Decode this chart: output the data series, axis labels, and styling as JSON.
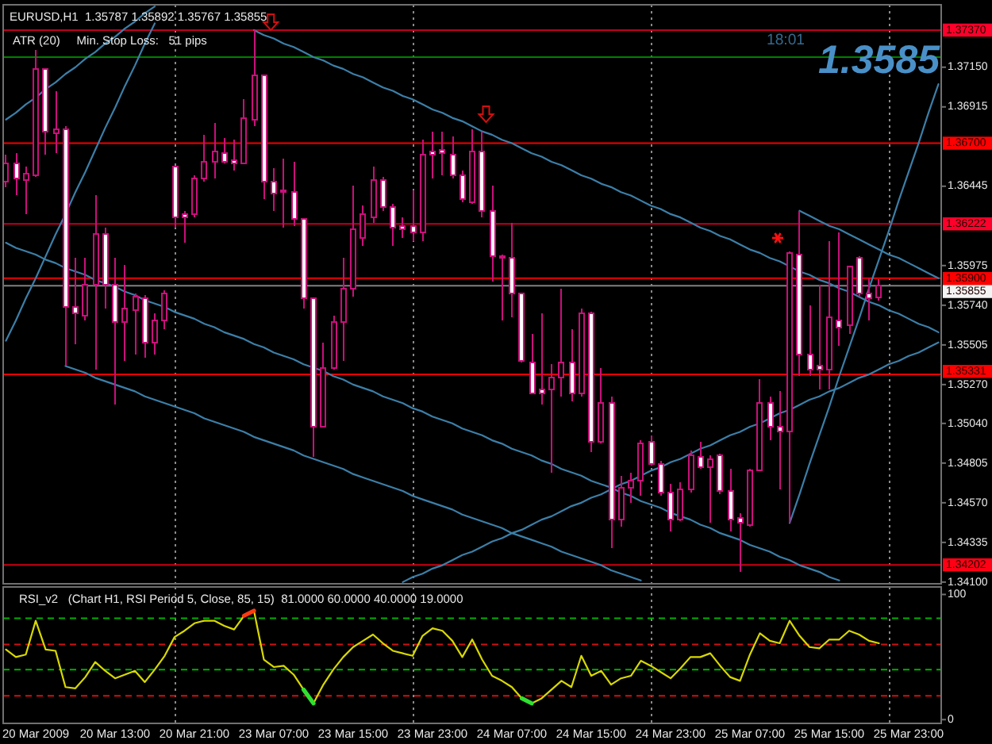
{
  "chart_data": [
    {
      "type": "candlestick",
      "title": "EURUSD,H1  1.35787 1.35892 1.35767 1.35855",
      "subtitle": "ATR (20)     Min. Stop Loss:   51 pips",
      "annotations": [
        "18:01",
        "1.3585"
      ],
      "categories": [
        null,
        null,
        null,
        null,
        null,
        null,
        null,
        null,
        null,
        null,
        null,
        null,
        null,
        null,
        null,
        null,
        null,
        null,
        null,
        null,
        null,
        null,
        null,
        null,
        null,
        null,
        null,
        null,
        null,
        null,
        null,
        null,
        null,
        null,
        null,
        null,
        null,
        null,
        null,
        null,
        null,
        null,
        null,
        null,
        null,
        null,
        null,
        null,
        null,
        null,
        null,
        null,
        null,
        null,
        null,
        null,
        null,
        null,
        null,
        null,
        null,
        null,
        null,
        null,
        null,
        null,
        null,
        null,
        null,
        null,
        null,
        null,
        null,
        null,
        null,
        null,
        null,
        null,
        null,
        null,
        null,
        null,
        null,
        null,
        null,
        null,
        null,
        null,
        null,
        null,
        null,
        null,
        null,
        null,
        null
      ],
      "ohlc": [
        [
          1.3647,
          1.3663,
          1.3644,
          1.3658
        ],
        [
          1.3658,
          1.3664,
          1.3639,
          1.3649
        ],
        [
          1.3648,
          1.3656,
          1.3628,
          1.3652
        ],
        [
          1.3651,
          1.3725,
          1.365,
          1.3714
        ],
        [
          1.3714,
          1.3714,
          1.3663,
          1.3677
        ],
        [
          1.3676,
          1.3701,
          1.3664,
          1.3678
        ],
        [
          1.3678,
          1.368,
          1.3538,
          1.3573
        ],
        [
          1.3573,
          1.3602,
          1.3551,
          1.3569
        ],
        [
          1.3568,
          1.3602,
          1.3565,
          1.3586
        ],
        [
          1.3586,
          1.3639,
          1.3536,
          1.3616
        ],
        [
          1.3616,
          1.362,
          1.3572,
          1.3586
        ],
        [
          1.3586,
          1.3602,
          1.3515,
          1.3564
        ],
        [
          1.3564,
          1.3598,
          1.3541,
          1.3572
        ],
        [
          1.3571,
          1.3581,
          1.3545,
          1.3579
        ],
        [
          1.3578,
          1.358,
          1.3543,
          1.3552
        ],
        [
          1.3552,
          1.3569,
          1.3545,
          1.3565
        ],
        [
          1.3565,
          1.3583,
          1.356,
          1.3581
        ],
        [
          1.3656,
          1.3656,
          1.362,
          1.3626
        ],
        [
          1.3628,
          1.363,
          1.3611,
          1.3626
        ],
        [
          1.3628,
          1.3651,
          1.3626,
          1.3649
        ],
        [
          1.3649,
          1.3675,
          1.3647,
          1.3659
        ],
        [
          1.3659,
          1.3682,
          1.3649,
          1.3665
        ],
        [
          1.3664,
          1.3673,
          1.3658,
          1.3659
        ],
        [
          1.366,
          1.3672,
          1.3654,
          1.3658
        ],
        [
          1.3658,
          1.3696,
          1.3658,
          1.3685
        ],
        [
          1.3684,
          1.3737,
          1.368,
          1.371
        ],
        [
          1.371,
          1.371,
          1.3637,
          1.3647
        ],
        [
          1.3647,
          1.3655,
          1.363,
          1.364
        ],
        [
          1.3642,
          1.3661,
          1.362,
          1.3641
        ],
        [
          1.3641,
          1.3659,
          1.3621,
          1.3625
        ],
        [
          1.3625,
          1.3625,
          1.3572,
          1.3578
        ],
        [
          1.3578,
          1.3578,
          1.3484,
          1.3502
        ],
        [
          1.3502,
          1.3552,
          1.3502,
          1.3537
        ],
        [
          1.3537,
          1.3568,
          1.3536,
          1.3564
        ],
        [
          1.3564,
          1.3602,
          1.3541,
          1.3584
        ],
        [
          1.3584,
          1.3645,
          1.3579,
          1.3619
        ],
        [
          1.3614,
          1.3633,
          1.3609,
          1.3628
        ],
        [
          1.3626,
          1.3656,
          1.3623,
          1.3648
        ],
        [
          1.3648,
          1.365,
          1.363,
          1.3632
        ],
        [
          1.3632,
          1.3634,
          1.3609,
          1.362
        ],
        [
          1.3621,
          1.3626,
          1.3614,
          1.3619
        ],
        [
          1.3621,
          1.3642,
          1.3612,
          1.3617
        ],
        [
          1.3617,
          1.3672,
          1.3612,
          1.3663
        ],
        [
          1.3665,
          1.3677,
          1.3649,
          1.3663
        ],
        [
          1.3666,
          1.3677,
          1.3651,
          1.3664
        ],
        [
          1.3663,
          1.3674,
          1.3649,
          1.3651
        ],
        [
          1.3651,
          1.3654,
          1.3635,
          1.3637
        ],
        [
          1.3635,
          1.3678,
          1.3634,
          1.3665
        ],
        [
          1.3665,
          1.3677,
          1.3626,
          1.363
        ],
        [
          1.363,
          1.3645,
          1.3588,
          1.3603
        ],
        [
          1.3603,
          1.3604,
          1.3565,
          1.3602
        ],
        [
          1.3602,
          1.3623,
          1.3567,
          1.3581
        ],
        [
          1.3581,
          1.3581,
          1.354,
          1.3541
        ],
        [
          1.354,
          1.3557,
          1.3522,
          1.3522
        ],
        [
          1.3524,
          1.3569,
          1.3515,
          1.3522
        ],
        [
          1.3524,
          1.3539,
          1.3475,
          1.3531
        ],
        [
          1.3531,
          1.3584,
          1.352,
          1.354
        ],
        [
          1.354,
          1.356,
          1.3517,
          1.3522
        ],
        [
          1.3522,
          1.3572,
          1.352,
          1.3569
        ],
        [
          1.3569,
          1.357,
          1.3487,
          1.3493
        ],
        [
          1.3493,
          1.3537,
          1.3492,
          1.3516
        ],
        [
          1.3516,
          1.352,
          1.343,
          1.3447
        ],
        [
          1.3447,
          1.3473,
          1.3443,
          1.3466
        ],
        [
          1.3466,
          1.3475,
          1.3457,
          1.347
        ],
        [
          1.347,
          1.3494,
          1.3461,
          1.3492
        ],
        [
          1.3493,
          1.3497,
          1.3479,
          1.348
        ],
        [
          1.348,
          1.3482,
          1.3461,
          1.3463
        ],
        [
          1.3463,
          1.3468,
          1.344,
          1.3447
        ],
        [
          1.3447,
          1.3469,
          1.3446,
          1.3465
        ],
        [
          1.3465,
          1.3488,
          1.3463,
          1.3485
        ],
        [
          1.3484,
          1.3493,
          1.3477,
          1.3478
        ],
        [
          1.3478,
          1.3485,
          1.3445,
          1.3483
        ],
        [
          1.3485,
          1.3486,
          1.3462,
          1.3464
        ],
        [
          1.3464,
          1.3477,
          1.344,
          1.3447
        ],
        [
          1.3448,
          1.3451,
          1.3416,
          1.3445
        ],
        [
          1.3444,
          1.3477,
          1.3443,
          1.3476
        ],
        [
          1.3476,
          1.353,
          1.3476,
          1.3516
        ],
        [
          1.3516,
          1.352,
          1.3494,
          1.3502
        ],
        [
          1.3502,
          1.3523,
          1.3465,
          1.3499
        ],
        [
          1.3499,
          1.3606,
          1.3445,
          1.3605
        ],
        [
          1.3604,
          1.363,
          1.3532,
          1.3545
        ],
        [
          1.3545,
          1.3574,
          1.3532,
          1.3536
        ],
        [
          1.3538,
          1.3586,
          1.3524,
          1.3536
        ],
        [
          1.3536,
          1.3612,
          1.3524,
          1.3567
        ],
        [
          1.3565,
          1.3617,
          1.355,
          1.3561
        ],
        [
          1.3562,
          1.3597,
          1.3557,
          1.3597
        ],
        [
          1.3602,
          1.3603,
          1.3579,
          1.3581
        ],
        [
          1.3581,
          1.359,
          1.3565,
          1.3578
        ],
        [
          1.35787,
          1.35892,
          1.35767,
          1.35855
        ],
        null,
        null,
        null,
        null,
        null,
        null
      ],
      "color": "#c8107a",
      "colors": [
        "#000000",
        "#ffffff",
        "#000000",
        "#000000",
        "#ffffff",
        "#000000",
        "#ffffff",
        "#ffffff",
        "#000000",
        "#000000",
        "#ffffff",
        "#ffffff",
        "#000000",
        "#000000",
        "#ffffff",
        "#000000",
        "#000000",
        "#ffffff",
        "#ffffff",
        "#000000",
        "#000000",
        "#000000",
        "#ffffff",
        "#ffffff",
        "#000000",
        "#000000",
        "#ffffff",
        "#ffffff",
        "#ffffff",
        "#ffffff",
        "#ffffff",
        "#ffffff",
        "#000000",
        "#000000",
        "#000000",
        "#000000",
        "#000000",
        "#000000",
        "#ffffff",
        "#ffffff",
        "#ffffff",
        "#ffffff",
        "#000000",
        "#ffffff",
        "#ffffff",
        "#ffffff",
        "#ffffff",
        "#000000",
        "#ffffff",
        "#ffffff",
        "#ffffff",
        "#ffffff",
        "#ffffff",
        "#ffffff",
        "#ffffff",
        "#000000",
        "#000000",
        "#ffffff",
        "#000000",
        "#ffffff",
        "#000000",
        "#ffffff",
        "#000000",
        "#000000",
        "#000000",
        "#ffffff",
        "#ffffff",
        "#ffffff",
        "#000000",
        "#000000",
        "#ffffff",
        "#000000",
        "#ffffff",
        "#ffffff",
        "#ffffff",
        "#000000",
        "#000000",
        "#ffffff",
        "#ffffff",
        "#000000",
        "#ffffff",
        "#ffffff",
        "#ffffff",
        "#000000",
        "#ffffff",
        "#000000",
        "#ffffff",
        "#ffffff",
        "#000000",
        null,
        null,
        null,
        null,
        null,
        null
      ],
      "series": [
        {
          "type": "line",
          "color": "#3c7fa8",
          "values": [
            1.3553,
            1.3565,
            1.3578,
            1.359,
            1.3603,
            1.3616,
            1.3628,
            1.3641,
            1.3653,
            1.3666,
            1.3679,
            1.3691,
            1.3704,
            1.3716,
            1.3729,
            1.3741,
            null,
            null,
            null,
            null,
            null,
            null,
            null,
            null,
            null,
            null,
            null,
            null,
            null,
            null,
            null,
            null,
            null,
            null,
            null,
            null,
            null,
            null,
            null,
            null,
            null,
            null,
            null,
            null,
            null,
            null,
            null,
            null,
            null,
            null,
            null,
            null,
            null,
            null,
            null,
            null,
            null,
            null,
            null,
            null,
            null,
            null,
            null,
            null,
            null,
            null,
            null,
            null,
            null,
            null,
            null,
            null,
            null,
            null,
            null,
            null,
            null,
            null,
            null,
            null,
            null,
            null,
            null,
            null,
            null,
            null,
            null,
            null,
            null,
            null,
            null,
            null,
            null,
            null,
            null
          ]
        },
        {
          "type": "line",
          "color": "#3c7fa8",
          "values": [
            1.3684,
            1.3688,
            1.3693,
            1.3697,
            1.3702,
            1.3706,
            1.3711,
            1.3715,
            1.372,
            1.3724,
            1.3729,
            1.3733,
            1.3738,
            1.3742,
            1.3747,
            1.3751,
            null,
            null,
            null,
            null,
            null,
            null,
            null,
            null,
            null,
            null,
            null,
            null,
            null,
            null,
            null,
            null,
            null,
            null,
            null,
            null,
            null,
            null,
            null,
            null,
            null,
            null,
            null,
            null,
            null,
            null,
            null,
            null,
            null,
            null,
            null,
            null,
            null,
            null,
            null,
            null,
            null,
            null,
            null,
            null,
            null,
            null,
            null,
            null,
            null,
            null,
            null,
            null,
            null,
            null,
            null,
            null,
            null,
            null,
            null,
            null,
            null,
            null,
            null,
            null,
            null,
            null,
            null,
            null,
            null,
            null,
            null,
            null,
            null,
            null,
            null,
            null,
            null,
            null,
            null
          ]
        },
        {
          "type": "line",
          "color": "#3c7fa8",
          "values": [
            null,
            null,
            null,
            null,
            null,
            null,
            null,
            null,
            null,
            null,
            null,
            null,
            null,
            null,
            null,
            null,
            null,
            null,
            null,
            null,
            null,
            null,
            null,
            null,
            null,
            1.3737,
            1.3734,
            1.3732,
            1.3729,
            1.3727,
            1.3724,
            1.3721,
            1.3719,
            1.3716,
            1.3714,
            1.3711,
            1.3709,
            1.3706,
            1.3703,
            1.3701,
            1.3698,
            1.3696,
            1.3693,
            1.369,
            1.3688,
            1.3685,
            1.3683,
            1.368,
            1.3677,
            1.3675,
            1.3672,
            1.367,
            1.3667,
            1.3664,
            1.3662,
            1.3659,
            1.3657,
            1.3654,
            1.3651,
            1.3649,
            1.3646,
            1.3644,
            1.3641,
            1.3639,
            1.3636,
            1.3633,
            1.3631,
            1.3628,
            1.3626,
            1.3623,
            1.362,
            1.3618,
            1.3615,
            1.3613,
            1.361,
            1.3607,
            1.3605,
            1.3602,
            1.36,
            1.3597,
            1.3594,
            1.3592,
            1.3589,
            1.3587,
            1.3584,
            1.3582,
            1.3579,
            1.3576,
            1.3574,
            1.3571,
            1.3569,
            1.3566,
            1.3563,
            1.3561,
            1.3558
          ]
        },
        {
          "type": "line",
          "color": "#3c7fa8",
          "values": [
            null,
            null,
            null,
            null,
            null,
            null,
            null,
            null,
            null,
            null,
            null,
            null,
            null,
            null,
            null,
            null,
            null,
            null,
            null,
            null,
            null,
            null,
            null,
            null,
            null,
            null,
            null,
            null,
            null,
            null,
            null,
            null,
            null,
            null,
            null,
            null,
            null,
            null,
            null,
            null,
            null,
            null,
            null,
            null,
            null,
            null,
            null,
            null,
            null,
            null,
            null,
            null,
            null,
            null,
            null,
            null,
            null,
            null,
            null,
            null,
            null,
            null,
            null,
            null,
            null,
            null,
            null,
            null,
            null,
            null,
            null,
            null,
            null,
            null,
            null,
            null,
            null,
            null,
            null,
            null,
            1.363,
            1.3627,
            1.3624,
            1.3621,
            1.3619,
            1.3616,
            1.3613,
            1.361,
            1.3607,
            1.3604,
            1.3602,
            1.3599,
            1.3596,
            1.3593,
            1.359
          ]
        },
        {
          "type": "line",
          "color": "#3c7fa8",
          "values": [
            null,
            null,
            null,
            null,
            null,
            null,
            null,
            null,
            null,
            null,
            null,
            null,
            null,
            null,
            null,
            null,
            null,
            null,
            null,
            null,
            null,
            null,
            null,
            null,
            null,
            null,
            null,
            null,
            null,
            null,
            null,
            null,
            null,
            null,
            null,
            null,
            null,
            null,
            null,
            null,
            null,
            null,
            null,
            null,
            null,
            null,
            null,
            null,
            null,
            null,
            null,
            null,
            null,
            null,
            null,
            null,
            null,
            null,
            null,
            null,
            null,
            null,
            null,
            null,
            null,
            null,
            null,
            null,
            null,
            null,
            null,
            null,
            null,
            null,
            null,
            null,
            null,
            null,
            null,
            1.3445,
            1.3462,
            1.348,
            1.3497,
            1.3514,
            1.3532,
            1.3549,
            1.3566,
            1.3584,
            1.3601,
            1.3618,
            1.3636,
            1.3653,
            1.367,
            1.3688,
            1.3705
          ]
        },
        {
          "type": "line",
          "color": "#3c7fa8",
          "values": [
            null,
            null,
            null,
            null,
            null,
            null,
            null,
            null,
            null,
            null,
            null,
            null,
            null,
            null,
            null,
            null,
            null,
            null,
            null,
            null,
            null,
            null,
            null,
            null,
            null,
            null,
            null,
            null,
            null,
            null,
            null,
            null,
            null,
            null,
            null,
            null,
            null,
            null,
            null,
            null,
            1.341,
            1.3413,
            1.3415,
            1.3418,
            1.342,
            1.3423,
            1.3426,
            1.3428,
            1.3431,
            1.3434,
            1.3436,
            1.3439,
            1.3441,
            1.3444,
            1.3447,
            1.3449,
            1.3452,
            1.3455,
            1.3457,
            1.346,
            1.3462,
            1.3465,
            1.3468,
            1.347,
            1.3473,
            1.3476,
            1.3478,
            1.3481,
            1.3483,
            1.3486,
            1.3489,
            1.3491,
            1.3494,
            1.3497,
            1.3499,
            1.3502,
            1.3504,
            1.3507,
            1.351,
            1.3512,
            1.3515,
            1.3518,
            1.352,
            1.3523,
            1.3525,
            1.3528,
            1.3531,
            1.3533,
            1.3536,
            1.3539,
            1.3541,
            1.3544,
            1.3546,
            1.3549,
            1.3552
          ]
        },
        {
          "type": "line",
          "color": "#3c7fa8",
          "values": [
            null,
            null,
            null,
            null,
            null,
            null,
            1.3538,
            1.3536,
            1.3534,
            1.3531,
            1.3529,
            1.3527,
            1.3525,
            1.3523,
            1.352,
            1.3518,
            1.3516,
            1.3514,
            1.3512,
            1.351,
            1.3507,
            1.3505,
            1.3503,
            1.3501,
            1.3499,
            1.3496,
            1.3494,
            1.3492,
            1.349,
            1.3488,
            1.3485,
            1.3483,
            1.3481,
            1.3479,
            1.3477,
            1.3474,
            1.3472,
            1.347,
            1.3468,
            1.3466,
            1.3464,
            1.3461,
            1.3459,
            1.3457,
            1.3455,
            1.3453,
            1.345,
            1.3448,
            1.3446,
            1.3444,
            1.3442,
            1.3439,
            1.3437,
            1.3435,
            1.3433,
            1.3431,
            1.3428,
            1.3426,
            1.3424,
            1.3422,
            1.342,
            1.3417,
            1.3415,
            1.3413,
            1.3411,
            null,
            null,
            null,
            null,
            null,
            null,
            null,
            null,
            null,
            null,
            null,
            null,
            null,
            null,
            null,
            null,
            null,
            null,
            null,
            null,
            null,
            null,
            null,
            null,
            null,
            null,
            null,
            null,
            null,
            null
          ]
        },
        {
          "type": "line",
          "color": "#3c7fa8",
          "values": [
            1.3611,
            1.3608,
            1.3606,
            1.3604,
            1.3601,
            1.3599,
            1.3596,
            1.3594,
            1.3592,
            1.3589,
            1.3587,
            1.3585,
            1.3582,
            1.358,
            1.3577,
            1.3575,
            1.3573,
            1.357,
            1.3568,
            1.3566,
            1.3563,
            1.3561,
            1.3558,
            1.3556,
            1.3554,
            1.3551,
            1.3549,
            1.3546,
            1.3544,
            1.3542,
            1.3539,
            1.3537,
            1.3535,
            1.3532,
            1.353,
            1.3527,
            1.3525,
            1.3523,
            1.352,
            1.3518,
            1.3516,
            1.3513,
            1.3511,
            1.3508,
            1.3506,
            1.3504,
            1.3501,
            1.3499,
            1.3497,
            1.3494,
            1.3492,
            1.3489,
            1.3487,
            1.3485,
            1.3482,
            1.348,
            1.3477,
            1.3475,
            1.3473,
            1.347,
            1.3468,
            1.3466,
            1.3463,
            1.3461,
            1.3458,
            1.3456,
            1.3454,
            1.3451,
            1.3449,
            1.3447,
            1.3444,
            1.3442,
            1.3439,
            1.3437,
            1.3435,
            1.3432,
            1.343,
            1.3428,
            1.3425,
            1.3423,
            1.342,
            1.3418,
            1.3416,
            1.3413,
            1.3411,
            null,
            null,
            null,
            null,
            null,
            null,
            null,
            null,
            null,
            null
          ]
        }
      ],
      "ylim": [
        1.3409,
        1.3752
      ],
      "yticks": [
        {
          "value": 1.341,
          "label": "1.34100"
        },
        1.34335,
        {
          "value": 1.3457,
          "label": "1.34570"
        },
        1.34805,
        {
          "value": 1.3504,
          "label": "1.35040"
        },
        {
          "value": 1.3527,
          "label": "1.35270"
        },
        1.35505,
        {
          "value": 1.3574,
          "label": "1.35740"
        },
        1.35975,
        1.36445,
        1.36915,
        {
          "value": 1.3715,
          "label": "1.37150"
        }
      ],
      "tick_labels": "y",
      "grid": "x",
      "ref_lines": [
        {
          "axis": "y",
          "value": 1.3737,
          "label": "1.37370",
          "color": "#c00020"
        },
        {
          "axis": "y",
          "value": 1.3721,
          "color": "#008000"
        },
        {
          "axis": "y",
          "value": 1.367,
          "label": "1.36700",
          "color": "#f00000"
        },
        {
          "axis": "y",
          "value": 1.36222,
          "label": "1.36222",
          "color": "#c00020"
        },
        {
          "axis": "y",
          "value": 1.359,
          "label": "1.35900",
          "color": "#f00000"
        },
        {
          "axis": "y",
          "value": 1.35855,
          "label": "1.35855",
          "color": "#808080"
        },
        {
          "axis": "y",
          "value": 1.35331,
          "label": "1.35331",
          "color": "#f00000"
        },
        {
          "axis": "y",
          "value": 1.34202,
          "label": "1.34202",
          "color": "#d00010"
        }
      ]
    },
    {
      "type": "line",
      "title": "RSI_v2   (Chart H1, RSI Period 5, Close, 85, 15)  81.0000 60.0000 40.0000 19.0000",
      "categories": [
        null,
        null,
        null,
        "20 Mar 2009",
        null,
        null,
        null,
        null,
        null,
        null,
        null,
        "20 Mar 13:00",
        null,
        null,
        null,
        null,
        null,
        null,
        null,
        "20 Mar 21:00",
        null,
        null,
        null,
        null,
        null,
        null,
        null,
        "23 Mar 07:00",
        null,
        null,
        null,
        null,
        null,
        null,
        null,
        "23 Mar 15:00",
        null,
        null,
        null,
        null,
        null,
        null,
        null,
        "23 Mar 23:00",
        null,
        null,
        null,
        null,
        null,
        null,
        null,
        "24 Mar 07:00",
        null,
        null,
        null,
        null,
        null,
        null,
        null,
        "24 Mar 15:00",
        null,
        null,
        null,
        null,
        null,
        null,
        null,
        "24 Mar 23:00",
        null,
        null,
        null,
        null,
        null,
        null,
        null,
        "25 Mar 07:00",
        null,
        null,
        null,
        null,
        null,
        null,
        null,
        "25 Mar 15:00",
        null,
        null,
        null,
        null,
        null,
        null,
        null,
        "25 Mar 23:00",
        null,
        null,
        null
      ],
      "series": [
        {
          "color": "#d8d800",
          "values": [
            56,
            50,
            52,
            79,
            56,
            55,
            26,
            25,
            34,
            46,
            39,
            33,
            36,
            39,
            30,
            40,
            51,
            66,
            71,
            77,
            79,
            79,
            75,
            72,
            83,
            87,
            48,
            42,
            43,
            36,
            24,
            13,
            28,
            40,
            50,
            58,
            63,
            68,
            61,
            55,
            53,
            51,
            67,
            73,
            71,
            63,
            50,
            64,
            48,
            35,
            31,
            26,
            17,
            13,
            17,
            24,
            31,
            26,
            51,
            35,
            39,
            28,
            33,
            35,
            47,
            43,
            38,
            33,
            41,
            50,
            50,
            53,
            43,
            34,
            31,
            52,
            69,
            63,
            61,
            79,
            67,
            58,
            57,
            64,
            64,
            71,
            68,
            63,
            61,
            null,
            null,
            null,
            null,
            null,
            null
          ]
        },
        {
          "color": "#ff3a10",
          "values": [
            null,
            null,
            null,
            null,
            null,
            null,
            null,
            null,
            null,
            null,
            null,
            null,
            null,
            null,
            null,
            null,
            null,
            null,
            null,
            null,
            null,
            null,
            null,
            null,
            83,
            87,
            null,
            null,
            null,
            null,
            null,
            null,
            null,
            null,
            null,
            null,
            null,
            null,
            null,
            null,
            null,
            null,
            null,
            null,
            null,
            null,
            null,
            null,
            null,
            null,
            null,
            null,
            null,
            null,
            null,
            null,
            null,
            null,
            null,
            null,
            null,
            null,
            null,
            null,
            null,
            null,
            null,
            null,
            null,
            null,
            null,
            null,
            null,
            null,
            null,
            null,
            null,
            null,
            null,
            null,
            null,
            null,
            null,
            null,
            null,
            null,
            null,
            null,
            null,
            null,
            null,
            null,
            null,
            null,
            null
          ]
        },
        {
          "color": "#30e030",
          "values": [
            null,
            null,
            null,
            null,
            null,
            null,
            null,
            null,
            null,
            null,
            null,
            null,
            null,
            null,
            null,
            null,
            null,
            null,
            null,
            null,
            null,
            null,
            null,
            null,
            null,
            null,
            null,
            null,
            null,
            null,
            24,
            13,
            null,
            null,
            null,
            null,
            null,
            null,
            null,
            null,
            null,
            null,
            null,
            null,
            null,
            null,
            null,
            null,
            null,
            null,
            null,
            null,
            17,
            13,
            null,
            null,
            null,
            null,
            null,
            null,
            null,
            null,
            null,
            null,
            null,
            null,
            null,
            null,
            null,
            null,
            null,
            null,
            null,
            null,
            null,
            null,
            null,
            null,
            null,
            null,
            null,
            null,
            null,
            null,
            null,
            null,
            null,
            null,
            null,
            null,
            null,
            null,
            null,
            null,
            null
          ]
        }
      ],
      "ylim": [
        -3,
        106
      ],
      "yticks": [
        0,
        100
      ],
      "ref_lines": [
        {
          "axis": "y",
          "value": 81,
          "color": "#00b000",
          "line_style": "dashed"
        },
        {
          "axis": "y",
          "value": 60,
          "color": "#d01010",
          "line_style": "dashed"
        },
        {
          "axis": "y",
          "value": 40,
          "color": "#00b000",
          "line_style": "dashed"
        },
        {
          "axis": "y",
          "value": 19,
          "color": "#d01010",
          "line_style": "dashed"
        }
      ]
    }
  ]
}
